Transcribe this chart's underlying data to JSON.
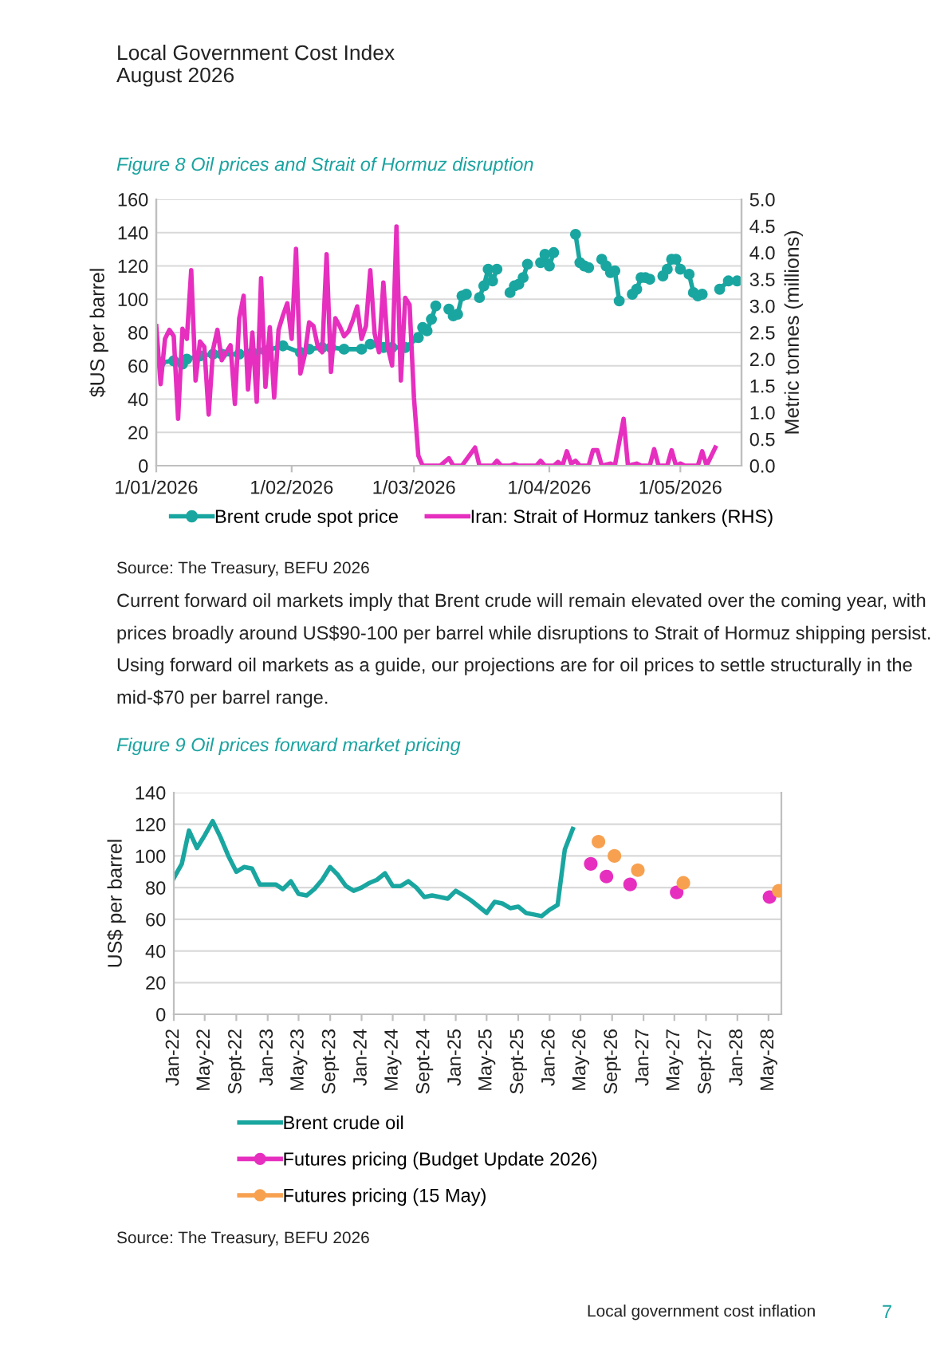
{
  "chart_data": [
    {
      "type": "line",
      "title": "Figure 8 Oil prices and Strait of Hormuz disruption",
      "ylabel": "$US per barrel",
      "y2label": "Metric tonnes (millions)",
      "annotations": [
        "Local Government Cost Index",
        "August 2026",
        "Source: The Treasury, BEFU 2026",
        "Current forward oil markets imply that Brent crude will remain elevated over the coming year, with\nprices broadly around US$90-100 per barrel while disruptions to Strait of Hormuz shipping persist.\nUsing forward oil markets as a guide, our projections are for oil prices to settle structurally in the\nmid-$70 per barrel range."
      ],
      "xlim": [
        "2026-01-01",
        "2026-05-15"
      ],
      "xticks": [
        {
          "value": "2026-01-01",
          "label": "1/01/2026"
        },
        {
          "value": "2026-02-01",
          "label": "1/02/2026"
        },
        {
          "value": "2026-03-01",
          "label": "1/03/2026"
        },
        {
          "value": "2026-04-01",
          "label": "1/04/2026"
        },
        {
          "value": "2026-05-01",
          "label": "1/05/2026"
        }
      ],
      "ylim": [
        0,
        160
      ],
      "yticks": [
        0,
        20,
        40,
        60,
        80,
        100,
        120,
        140,
        160
      ],
      "y2lim": [
        0,
        5
      ],
      "y2ticks": [
        {
          "value": 0,
          "label": "0.0"
        },
        0.5,
        {
          "value": 1,
          "label": "1.0"
        },
        1.5,
        {
          "value": 2,
          "label": "2.0"
        },
        2.5,
        {
          "value": 3,
          "label": "3.0"
        },
        3.5,
        {
          "value": 4,
          "label": "4.0"
        },
        4.5,
        {
          "value": 5,
          "label": "5.0"
        }
      ],
      "grid": "y",
      "legend": "bottom",
      "series": [
        {
          "name": "Brent crude spot price",
          "color": "#1aa6a0",
          "marker": "circle",
          "x": [
            "2026-01-02",
            "2026-01-05",
            "2026-01-07",
            "2026-01-08",
            "2026-01-11",
            "2026-01-14",
            "2026-01-16",
            "2026-01-20",
            "2026-01-23",
            "2026-01-26",
            "2026-01-30",
            "2026-02-03",
            "2026-02-05",
            "2026-02-08",
            "2026-02-10",
            "2026-02-13",
            "2026-02-17",
            "2026-02-19",
            "2026-02-22",
            "2026-02-24",
            "2026-02-27",
            "2026-03-02",
            "2026-03-03",
            "2026-03-04",
            "2026-03-05",
            "2026-03-06",
            "2026-03-08",
            "2026-03-09",
            "2026-03-10",
            "2026-03-11",
            "2026-03-12",
            "2026-03-13",
            "2026-03-15",
            "2026-03-16",
            "2026-03-17",
            "2026-03-18",
            "2026-03-19",
            "2026-03-20",
            "2026-03-22",
            "2026-03-23",
            "2026-03-24",
            "2026-03-25",
            "2026-03-26",
            "2026-03-27",
            "2026-03-29",
            "2026-03-30",
            "2026-03-31",
            "2026-04-01",
            "2026-04-02",
            "2026-04-04",
            "2026-04-07",
            "2026-04-08",
            "2026-04-09",
            "2026-04-10",
            "2026-04-12",
            "2026-04-13",
            "2026-04-14",
            "2026-04-15",
            "2026-04-16",
            "2026-04-17",
            "2026-04-19",
            "2026-04-20",
            "2026-04-21",
            "2026-04-22",
            "2026-04-23",
            "2026-04-24",
            "2026-04-26",
            "2026-04-27",
            "2026-04-28",
            "2026-04-29",
            "2026-04-30",
            "2026-05-01",
            "2026-05-02",
            "2026-05-03",
            "2026-05-04",
            "2026-05-05",
            "2026-05-06",
            "2026-05-08",
            "2026-05-10",
            "2026-05-12",
            "2026-05-14"
          ],
          "values": [
            62,
            63,
            61,
            64,
            66,
            67,
            67,
            67,
            68,
            69,
            72,
            68,
            70,
            71,
            71,
            70,
            70,
            73,
            71,
            71,
            71,
            77,
            83,
            81,
            88,
            96,
            null,
            94,
            90,
            91,
            102,
            103,
            null,
            101,
            108,
            118,
            111,
            118,
            null,
            104,
            108,
            109,
            113,
            121,
            null,
            122,
            127,
            120,
            128,
            null,
            139,
            122,
            120,
            119,
            null,
            124,
            120,
            116,
            117,
            99,
            null,
            103,
            106,
            113,
            113,
            112,
            null,
            114,
            118,
            124,
            124,
            118,
            null,
            115,
            104,
            102,
            103,
            null,
            106,
            111,
            111
          ]
        },
        {
          "name": "Iran: Strait of Hormuz tankers (RHS)",
          "color": "#e62fbf",
          "axis": "y2",
          "x": [
            "2026-01-01",
            "2026-01-02",
            "2026-01-03",
            "2026-01-04",
            "2026-01-05",
            "2026-01-06",
            "2026-01-07",
            "2026-01-08",
            "2026-01-09",
            "2026-01-10",
            "2026-01-11",
            "2026-01-12",
            "2026-01-13",
            "2026-01-14",
            "2026-01-15",
            "2026-01-16",
            "2026-01-17",
            "2026-01-18",
            "2026-01-19",
            "2026-01-20",
            "2026-01-21",
            "2026-01-22",
            "2026-01-23",
            "2026-01-24",
            "2026-01-25",
            "2026-01-26",
            "2026-01-27",
            "2026-01-28",
            "2026-01-29",
            "2026-01-30",
            "2026-01-31",
            "2026-02-01",
            "2026-02-02",
            "2026-02-03",
            "2026-02-04",
            "2026-02-05",
            "2026-02-06",
            "2026-02-07",
            "2026-02-08",
            "2026-02-09",
            "2026-02-10",
            "2026-02-11",
            "2026-02-12",
            "2026-02-13",
            "2026-02-14",
            "2026-02-15",
            "2026-02-16",
            "2026-02-17",
            "2026-02-18",
            "2026-02-19",
            "2026-02-20",
            "2026-02-21",
            "2026-02-22",
            "2026-02-23",
            "2026-02-24",
            "2026-02-25",
            "2026-02-26",
            "2026-02-27",
            "2026-02-28",
            "2026-03-01",
            "2026-03-02",
            "2026-03-03",
            "2026-03-07",
            "2026-03-09",
            "2026-03-10",
            "2026-03-12",
            "2026-03-15",
            "2026-03-16",
            "2026-03-19",
            "2026-03-20",
            "2026-03-21",
            "2026-03-23",
            "2026-03-24",
            "2026-03-25",
            "2026-03-29",
            "2026-03-30",
            "2026-03-31",
            "2026-04-02",
            "2026-04-03",
            "2026-04-04",
            "2026-04-05",
            "2026-04-06",
            "2026-04-07",
            "2026-04-08",
            "2026-04-10",
            "2026-04-11",
            "2026-04-12",
            "2026-04-13",
            "2026-04-15",
            "2026-04-16",
            "2026-04-18",
            "2026-04-19",
            "2026-04-21",
            "2026-04-22",
            "2026-04-24",
            "2026-04-25",
            "2026-04-26",
            "2026-04-28",
            "2026-04-29",
            "2026-04-30",
            "2026-05-01",
            "2026-05-02",
            "2026-05-05",
            "2026-05-06",
            "2026-05-07",
            "2026-05-09"
          ],
          "values": [
            2.62,
            1.53,
            2.38,
            2.55,
            2.43,
            0.88,
            2.57,
            2.38,
            3.67,
            1.6,
            2.33,
            2.23,
            0.96,
            2.18,
            2.55,
            1.98,
            2.13,
            2.26,
            1.16,
            2.77,
            3.19,
            1.43,
            2.5,
            1.2,
            3.52,
            1.48,
            2.6,
            1.28,
            2.55,
            2.82,
            3.05,
            2.38,
            4.07,
            1.73,
            2.08,
            2.69,
            2.62,
            2.23,
            2.13,
            3.97,
            1.76,
            2.77,
            2.62,
            2.43,
            2.52,
            2.73,
            2.99,
            2.38,
            2.62,
            3.67,
            2.48,
            2.13,
            3.44,
            2.23,
            1.88,
            4.49,
            1.6,
            3.15,
            3.02,
            1.28,
            0.19,
            0,
            0,
            0.14,
            0,
            0,
            0.34,
            0,
            0,
            0.09,
            0,
            0,
            0.03,
            0,
            0,
            0.09,
            0,
            0,
            0.07,
            0,
            0.27,
            0.04,
            0.09,
            0,
            0,
            0.29,
            0.29,
            0,
            0.04,
            0,
            0.88,
            0,
            0.04,
            0,
            0,
            0.31,
            0,
            0,
            0.29,
            0,
            0.04,
            0,
            0,
            0.27,
            0,
            0.34
          ]
        }
      ]
    },
    {
      "type": "line",
      "title": "Figure 9 Oil prices forward market pricing",
      "ylabel": "US$ per barrel",
      "annotations": [
        "Source: The Treasury, BEFU 2026",
        "Local government cost inflation",
        "7"
      ],
      "xlim": [
        "2022-01",
        "2028-06-20"
      ],
      "xticks": [
        {
          "value": "2022-01",
          "label": "Jan-22"
        },
        {
          "value": "2022-05",
          "label": "May-22"
        },
        {
          "value": "2022-09",
          "label": "Sept-22"
        },
        {
          "value": "2023-01",
          "label": "Jan-23"
        },
        {
          "value": "2023-05",
          "label": "May-23"
        },
        {
          "value": "2023-09",
          "label": "Sept-23"
        },
        {
          "value": "2024-01",
          "label": "Jan-24"
        },
        {
          "value": "2024-05",
          "label": "May-24"
        },
        {
          "value": "2024-09",
          "label": "Sept-24"
        },
        {
          "value": "2025-01",
          "label": "Jan-25"
        },
        {
          "value": "2025-05",
          "label": "May-25"
        },
        {
          "value": "2025-09",
          "label": "Sept-25"
        },
        {
          "value": "2026-01",
          "label": "Jan-26"
        },
        {
          "value": "2026-05",
          "label": "May-26"
        },
        {
          "value": "2026-09",
          "label": "Sept-26"
        },
        {
          "value": "2027-01",
          "label": "Jan-27"
        },
        {
          "value": "2027-05",
          "label": "May-27"
        },
        {
          "value": "2027-09",
          "label": "Sept-27"
        },
        {
          "value": "2028-01",
          "label": "Jan-28"
        },
        {
          "value": "2028-05",
          "label": "May-28"
        }
      ],
      "ylim": [
        0,
        140
      ],
      "yticks": [
        0,
        20,
        40,
        60,
        80,
        100,
        120,
        140
      ],
      "grid": "y",
      "legend": "bottom",
      "series": [
        {
          "name": "Brent crude oil",
          "color": "#1aa6a0",
          "x": [
            "2022-01",
            "2022-02",
            "2022-03",
            "2022-04",
            "2022-05",
            "2022-06",
            "2022-07",
            "2022-08",
            "2022-09",
            "2022-10",
            "2022-11",
            "2022-12",
            "2023-01",
            "2023-02",
            "2023-03",
            "2023-04",
            "2023-05",
            "2023-06",
            "2023-07",
            "2023-08",
            "2023-09",
            "2023-10",
            "2023-11",
            "2023-12",
            "2024-01",
            "2024-02",
            "2024-03",
            "2024-04",
            "2024-05",
            "2024-06",
            "2024-07",
            "2024-08",
            "2024-09",
            "2024-10",
            "2024-11",
            "2024-12",
            "2025-01",
            "2025-02",
            "2025-03",
            "2025-04",
            "2025-05",
            "2025-06",
            "2025-07",
            "2025-08",
            "2025-09",
            "2025-10",
            "2025-11",
            "2025-12",
            "2026-01",
            "2026-02",
            "2026-03",
            "2026-04"
          ],
          "values": [
            86,
            95,
            116,
            105,
            113,
            122,
            112,
            100,
            90,
            93,
            92,
            82,
            82,
            82,
            79,
            84,
            76,
            75,
            79,
            85,
            93,
            88,
            81,
            78,
            80,
            83,
            85,
            89,
            81,
            81,
            84,
            80,
            74,
            75,
            74,
            73,
            78,
            75,
            72,
            68,
            64,
            71,
            70,
            67,
            68,
            64,
            63,
            62,
            66,
            69,
            104,
            117
          ]
        },
        {
          "name": "Futures pricing (Budget Update 2026)",
          "color": "#e62fbf",
          "type": "scatter",
          "marker": "circle",
          "x": [
            "2026-06-10",
            "2026-08-10",
            "2026-11-10",
            "2027-05-10",
            "2028-05-05"
          ],
          "values": [
            95,
            87,
            82,
            77,
            74
          ]
        },
        {
          "name": "Futures pricing (15 May)",
          "color": "#f7a150",
          "type": "scatter",
          "marker": "circle",
          "x": [
            "2026-07-10",
            "2026-09-10",
            "2026-12-10",
            "2027-06-05",
            "2028-06-10"
          ],
          "values": [
            109,
            100,
            91,
            83,
            78
          ]
        }
      ]
    }
  ]
}
